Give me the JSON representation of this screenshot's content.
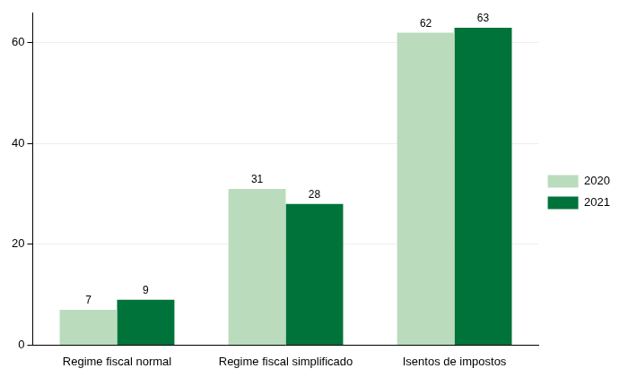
{
  "chart_data": {
    "type": "bar",
    "categories": [
      "Regime fiscal normal",
      "Regime fiscal simplificado",
      "Isentos de impostos"
    ],
    "series": [
      {
        "name": "2020",
        "color": "#badcbc",
        "values": [
          7,
          31,
          62
        ]
      },
      {
        "name": "2021",
        "color": "#00733a",
        "values": [
          9,
          28,
          63
        ]
      }
    ],
    "ylim": [
      0,
      66
    ],
    "yticks": [
      0,
      20,
      40,
      60
    ],
    "grid": true,
    "legend": "right",
    "data_labels": true
  }
}
